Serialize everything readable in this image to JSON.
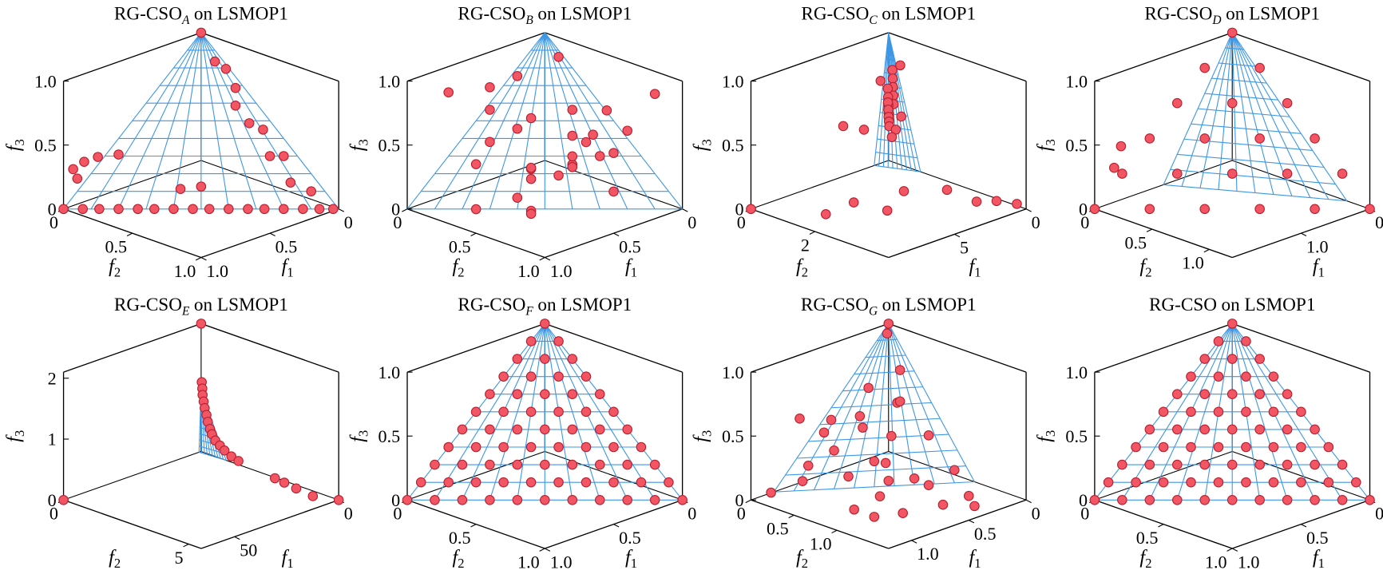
{
  "chart_data": [
    {
      "type": "scatter3d",
      "title": "RG-CSO",
      "title_sub": "A",
      "title_suffix": "on LSMOP1",
      "xlabel": "f",
      "xlabel_sub": "1",
      "ylabel": "f",
      "ylabel_sub": "2",
      "zlabel": "f",
      "zlabel_sub": "3",
      "xlim": [
        0,
        1
      ],
      "ylim": [
        0,
        1
      ],
      "zlim": [
        0,
        1
      ],
      "xticks": [
        0,
        0.5,
        {
          "value": 1,
          "label": "1.0"
        }
      ],
      "yticks": [
        0,
        0.5,
        {
          "value": 1,
          "label": "1.0"
        }
      ],
      "zticks": [
        0,
        0.5,
        {
          "value": 1,
          "label": "1.0"
        }
      ],
      "color": "#f25563",
      "edgecolor": "#b81f2d",
      "front_color": "#3d97e6",
      "x": [
        1,
        0.93,
        0.87,
        0.8,
        0.73,
        0.67,
        0.6,
        0.53,
        0.47,
        0.4,
        0.33,
        0.27,
        0.2,
        0.13,
        0.07,
        0.02,
        0.05,
        0.1,
        0.05,
        0.1,
        0.05,
        0.1,
        0.05,
        0.02,
        0.05,
        0.1,
        0.95,
        0.9,
        0.8,
        0.7,
        0.9,
        0.5,
        0.4,
        0
      ],
      "y": [
        0,
        0.07,
        0.13,
        0.2,
        0.27,
        0.33,
        0.4,
        0.47,
        0.53,
        0.6,
        0.67,
        0.73,
        0.8,
        0.87,
        0.93,
        0.98,
        0.3,
        0.35,
        0.5,
        0.6,
        0.65,
        0.75,
        0.85,
        0.2,
        0.15,
        0.45,
        0.02,
        0.05,
        0.05,
        0.1,
        0,
        0.35,
        0.4,
        0
      ],
      "z": [
        0,
        0,
        0,
        0,
        0,
        0,
        0,
        0,
        0,
        0,
        0,
        0,
        0,
        0,
        0,
        0,
        0.7,
        0.6,
        0.45,
        0.3,
        0.3,
        0.15,
        0.1,
        0.8,
        0.85,
        0.5,
        0.3,
        0.35,
        0.35,
        0.35,
        0.2,
        0.1,
        0.1,
        1
      ]
    },
    {
      "type": "scatter3d",
      "title": "RG-CSO",
      "title_sub": "B",
      "title_suffix": "on LSMOP1",
      "xlabel": "f",
      "xlabel_sub": "1",
      "ylabel": "f",
      "ylabel_sub": "2",
      "zlabel": "f",
      "zlabel_sub": "3",
      "xlim": [
        0,
        1
      ],
      "ylim": [
        0,
        1
      ],
      "zlim": [
        0,
        1
      ],
      "xticks": [
        0,
        0.5,
        {
          "value": 1,
          "label": "1.0"
        }
      ],
      "yticks": [
        0,
        0.5,
        {
          "value": 1,
          "label": "1.0"
        }
      ],
      "zticks": [
        0,
        0.5,
        {
          "value": 1,
          "label": "1.0"
        }
      ],
      "color": "#f25563",
      "edgecolor": "#b81f2d",
      "front_color": "#3d97e6",
      "x": [
        0.1,
        0.2,
        0.3,
        0.4,
        0.5,
        0.6,
        0.7,
        0.8,
        0.9,
        0.15,
        0.25,
        0.35,
        0.45,
        0.55,
        0.65,
        0.75,
        0.85,
        0.95,
        0.05,
        0.2,
        0.4,
        0.6,
        0.8,
        0.3,
        0.5,
        0.7,
        0.9,
        0.1,
        0.6,
        0.35
      ],
      "y": [
        0.9,
        0.7,
        0.5,
        0.3,
        0.1,
        0.8,
        0.6,
        0.4,
        0.2,
        0.55,
        0.85,
        0.15,
        0.65,
        0.35,
        0.95,
        0.25,
        0.75,
        0.45,
        0.5,
        0.3,
        0.9,
        0.2,
        0.7,
        0.1,
        0.6,
        0.9,
        0.8,
        0.3,
        0.5,
        0.7
      ],
      "z": [
        0.9,
        0.4,
        0.7,
        0.2,
        0.8,
        0.5,
        0.1,
        0.6,
        0.95,
        0.3,
        0.65,
        0.85,
        0.45,
        0.05,
        0.75,
        0.35,
        0.55,
        0.15,
        0.6,
        1,
        0.25,
        0.7,
        0.9,
        0.4,
        0.3,
        0.8,
        0.5,
        0.1,
        0,
        0.6
      ]
    },
    {
      "type": "scatter3d",
      "title": "RG-CSO",
      "title_sub": "C",
      "title_suffix": "on LSMOP1",
      "xlabel": "f",
      "xlabel_sub": "1",
      "ylabel": "f",
      "ylabel_sub": "2",
      "zlabel": "f",
      "zlabel_sub": "3",
      "xlim": [
        0,
        9.6
      ],
      "ylim": [
        0,
        4.3
      ],
      "zlim": [
        0,
        1
      ],
      "xticks": [
        0,
        5
      ],
      "yticks": [
        0,
        2
      ],
      "zticks": [
        0,
        0.5,
        {
          "value": 1,
          "label": "1.0"
        }
      ],
      "color": "#f25563",
      "edgecolor": "#b81f2d",
      "front_color": "#3d97e6",
      "x": [
        0.4,
        0.6,
        0.8,
        1,
        1.2,
        0.5,
        0.7,
        0.9,
        1.1,
        1.3,
        0.6,
        0.8,
        1,
        1.2,
        1.4,
        0.3,
        0.9,
        1.5,
        2,
        1,
        9.6,
        7.5,
        6,
        5,
        2.5,
        1.5,
        1,
        0.5,
        0.2,
        3.5,
        4.5
      ],
      "y": [
        0.3,
        0.4,
        0.5,
        0.6,
        0.7,
        0.2,
        0.3,
        0.4,
        0.5,
        0.6,
        0.25,
        0.35,
        0.45,
        0.55,
        0.65,
        0.5,
        0.8,
        0.9,
        1,
        0.2,
        0,
        1.4,
        1.6,
        2.2,
        1.6,
        2.5,
        3.2,
        3.6,
        4.1,
        0.8,
        0.6
      ],
      "z": [
        0.75,
        0.7,
        0.65,
        0.6,
        0.55,
        0.6,
        0.55,
        0.5,
        0.45,
        0.42,
        0.5,
        0.46,
        0.42,
        0.4,
        0.38,
        0.8,
        0.45,
        0.38,
        0.35,
        0.68,
        0,
        0,
        0.05,
        0,
        0,
        0.05,
        0,
        0.02,
        0.03,
        0.45,
        0.5
      ]
    },
    {
      "type": "scatter3d",
      "title": "RG-CSO",
      "title_sub": "D",
      "title_suffix": "on LSMOP1",
      "xlabel": "f",
      "xlabel_sub": "1",
      "ylabel": "f",
      "ylabel_sub": "2",
      "zlabel": "f",
      "zlabel_sub": "3",
      "xlim": [
        0,
        2
      ],
      "ylim": [
        0,
        1.2
      ],
      "zlim": [
        0,
        1
      ],
      "xticks": [
        0,
        {
          "value": 1,
          "label": "1.0"
        }
      ],
      "yticks": [
        0,
        0.5,
        {
          "value": 1,
          "label": "1.0"
        }
      ],
      "zticks": [
        0,
        0.5,
        {
          "value": 1,
          "label": "1.0"
        }
      ],
      "color": "#f25563",
      "edgecolor": "#b81f2d",
      "front_color": "#3d97e6",
      "x": [
        2,
        1.6,
        1.2,
        0.8,
        0.4,
        0,
        1.6,
        1.2,
        0.8,
        0.4,
        0,
        1.2,
        0.8,
        0.4,
        0,
        0.8,
        0.4,
        0,
        0.4,
        0,
        0,
        1.7,
        1.8
      ],
      "y": [
        0,
        0.24,
        0.48,
        0.72,
        0.96,
        1.2,
        0,
        0.24,
        0.48,
        0.72,
        0.96,
        0,
        0.24,
        0.48,
        0.72,
        0,
        0.24,
        0.48,
        0,
        0.24,
        0,
        0.05,
        0.05
      ],
      "z": [
        0,
        0,
        0,
        0,
        0,
        0,
        0.2,
        0.2,
        0.2,
        0.2,
        0.2,
        0.4,
        0.4,
        0.4,
        0.4,
        0.6,
        0.6,
        0.6,
        0.8,
        0.8,
        1,
        0.45,
        0.3
      ]
    },
    {
      "type": "scatter3d",
      "title": "RG-CSO",
      "title_sub": "E",
      "title_suffix": "on LSMOP1",
      "xlabel": "f",
      "xlabel_sub": "1",
      "ylabel": "f",
      "ylabel_sub": "2",
      "zlabel": "f",
      "zlabel_sub": "3",
      "xlim": [
        0,
        66
      ],
      "ylim": [
        0,
        5.5
      ],
      "zlim": [
        0,
        2.1
      ],
      "xticks": [
        0,
        50
      ],
      "yticks": [
        0,
        5
      ],
      "zticks": [
        0,
        1,
        2
      ],
      "color": "#f25563",
      "edgecolor": "#b81f2d",
      "front_color": "#3d97e6",
      "x": [
        0.3,
        0.4,
        0.5,
        0.6,
        0.7,
        0.8,
        1,
        1.2,
        1.4,
        1.6,
        1.8,
        2,
        2.3,
        2.5,
        3,
        3.3,
        3.6,
        4,
        0,
        66,
        0
      ],
      "y": [
        0.05,
        0.08,
        0.1,
        0.15,
        0.2,
        0.28,
        0.35,
        0.45,
        0.55,
        0.7,
        0.9,
        1.1,
        1.4,
        1.7,
        3.2,
        3.6,
        4.1,
        4.8,
        0,
        0,
        5.5
      ],
      "z": [
        1.15,
        1.05,
        0.95,
        0.85,
        0.75,
        0.65,
        0.55,
        0.45,
        0.38,
        0.3,
        0.25,
        0.2,
        0.15,
        0.12,
        0.06,
        0.05,
        0.03,
        0.01,
        2.1,
        0,
        0
      ]
    },
    {
      "type": "scatter3d",
      "title": "RG-CSO",
      "title_sub": "F",
      "title_suffix": "on LSMOP1",
      "xlabel": "f",
      "xlabel_sub": "1",
      "ylabel": "f",
      "ylabel_sub": "2",
      "zlabel": "f",
      "zlabel_sub": "3",
      "xlim": [
        0,
        1
      ],
      "ylim": [
        0,
        1
      ],
      "zlim": [
        0,
        1
      ],
      "xticks": [
        0,
        0.5,
        {
          "value": 1,
          "label": "1.0"
        }
      ],
      "yticks": [
        0,
        0.5,
        {
          "value": 1,
          "label": "1.0"
        }
      ],
      "zticks": [
        0,
        0.5,
        {
          "value": 1,
          "label": "1.0"
        }
      ],
      "color": "#f25563",
      "edgecolor": "#b81f2d",
      "front_color": "#3d97e6",
      "x": [
        1,
        0.9,
        0.8,
        0.7,
        0.6,
        0.5,
        0.4,
        0.3,
        0.2,
        0.1,
        0,
        0.9,
        0.8,
        0.7,
        0.6,
        0.5,
        0.4,
        0.3,
        0.2,
        0.1,
        0,
        0.8,
        0.7,
        0.6,
        0.5,
        0.4,
        0.3,
        0.2,
        0.1,
        0,
        0.7,
        0.6,
        0.5,
        0.4,
        0.3,
        0.2,
        0.1,
        0,
        0.6,
        0.5,
        0.4,
        0.3,
        0.2,
        0.1,
        0,
        0.5,
        0.4,
        0.3,
        0.2,
        0.1,
        0,
        0.4,
        0.3,
        0.2,
        0.1,
        0,
        0.3,
        0.2,
        0.1,
        0,
        0.2,
        0.1,
        0,
        0.1,
        0,
        0
      ],
      "y": [
        0,
        0.1,
        0.2,
        0.3,
        0.4,
        0.5,
        0.6,
        0.7,
        0.8,
        0.9,
        1,
        0,
        0.1,
        0.2,
        0.3,
        0.4,
        0.5,
        0.6,
        0.7,
        0.8,
        0.9,
        0,
        0.1,
        0.2,
        0.3,
        0.4,
        0.5,
        0.6,
        0.7,
        0.8,
        0,
        0.1,
        0.2,
        0.3,
        0.4,
        0.5,
        0.6,
        0.7,
        0,
        0.1,
        0.2,
        0.3,
        0.4,
        0.5,
        0.6,
        0,
        0.1,
        0.2,
        0.3,
        0.4,
        0.5,
        0,
        0.1,
        0.2,
        0.3,
        0.4,
        0,
        0.1,
        0.2,
        0.3,
        0,
        0.1,
        0.2,
        0,
        0.1,
        0
      ],
      "z": [
        0,
        0,
        0,
        0,
        0,
        0,
        0,
        0,
        0,
        0,
        0,
        0.1,
        0.1,
        0.1,
        0.1,
        0.1,
        0.1,
        0.1,
        0.1,
        0.1,
        0.1,
        0.2,
        0.2,
        0.2,
        0.2,
        0.2,
        0.2,
        0.2,
        0.2,
        0.2,
        0.3,
        0.3,
        0.3,
        0.3,
        0.3,
        0.3,
        0.3,
        0.3,
        0.4,
        0.4,
        0.4,
        0.4,
        0.4,
        0.4,
        0.4,
        0.5,
        0.5,
        0.5,
        0.5,
        0.5,
        0.5,
        0.6,
        0.6,
        0.6,
        0.6,
        0.6,
        0.7,
        0.7,
        0.7,
        0.7,
        0.8,
        0.8,
        0.8,
        0.9,
        0.9,
        1
      ]
    },
    {
      "type": "scatter3d",
      "title": "RG-CSO",
      "title_sub": "G",
      "title_suffix": "on LSMOP1",
      "xlabel": "f",
      "xlabel_sub": "1",
      "ylabel": "f",
      "ylabel_sub": "2",
      "zlabel": "f",
      "zlabel_sub": "3",
      "xlim": [
        0,
        1.2
      ],
      "ylim": [
        0,
        1.6
      ],
      "zlim": [
        0,
        1
      ],
      "xticks": [
        0,
        0.5,
        {
          "value": 1,
          "label": "1.0"
        }
      ],
      "yticks": [
        0,
        0.5,
        {
          "value": 1,
          "label": "1.0"
        }
      ],
      "zticks": [
        0,
        0.5,
        {
          "value": 1,
          "label": "1.0"
        }
      ],
      "color": "#f25563",
      "edgecolor": "#b81f2d",
      "front_color": "#3d97e6",
      "x": [
        0.1,
        0.3,
        0.5,
        0.7,
        0.9,
        1.1,
        0.2,
        0.4,
        0.6,
        0.8,
        1,
        0.15,
        0.35,
        0.55,
        0.75,
        0.95,
        0.05,
        0.25,
        0.45,
        0.65,
        0.85,
        0.3,
        0.5,
        0.7,
        0.1,
        0.2,
        0.05,
        0.6,
        0.9,
        0.4,
        0
      ],
      "y": [
        0.9,
        0.7,
        0.5,
        0.3,
        0.2,
        0.1,
        1.2,
        1,
        0.8,
        0.6,
        0.4,
        0.3,
        0.5,
        0.7,
        0.9,
        1.1,
        0.2,
        0.1,
        0.3,
        0.2,
        0.1,
        1.4,
        1.3,
        1.1,
        0.6,
        0.4,
        0.05,
        0.05,
        0.8,
        0.2,
        0
      ],
      "z": [
        0.1,
        0.05,
        0.2,
        0.3,
        0.1,
        0.05,
        0,
        0.1,
        0.15,
        0.2,
        0.3,
        0.5,
        0.35,
        0.25,
        0.1,
        0.05,
        0.7,
        0.6,
        0.4,
        0.5,
        0.55,
        0,
        0.05,
        0,
        0.3,
        0.55,
        0.95,
        0.35,
        0.02,
        0.45,
        1
      ]
    },
    {
      "type": "scatter3d",
      "title": "RG-CSO",
      "title_suffix": "on LSMOP1",
      "xlabel": "f",
      "xlabel_sub": "1",
      "ylabel": "f",
      "ylabel_sub": "2",
      "zlabel": "f",
      "zlabel_sub": "3",
      "xlim": [
        0,
        1
      ],
      "ylim": [
        0,
        1
      ],
      "zlim": [
        0,
        1
      ],
      "xticks": [
        0,
        0.5,
        {
          "value": 1,
          "label": "1.0"
        }
      ],
      "yticks": [
        0,
        0.5,
        {
          "value": 1,
          "label": "1.0"
        }
      ],
      "zticks": [
        0,
        0.5,
        {
          "value": 1,
          "label": "1.0"
        }
      ],
      "color": "#f25563",
      "edgecolor": "#b81f2d",
      "front_color": "#3d97e6",
      "x": [
        1,
        0.9,
        0.8,
        0.7,
        0.6,
        0.5,
        0.4,
        0.3,
        0.2,
        0.1,
        0,
        0.9,
        0.8,
        0.7,
        0.6,
        0.5,
        0.4,
        0.3,
        0.2,
        0.1,
        0,
        0.8,
        0.7,
        0.6,
        0.5,
        0.4,
        0.3,
        0.2,
        0.1,
        0,
        0.7,
        0.6,
        0.5,
        0.4,
        0.3,
        0.2,
        0.1,
        0,
        0.6,
        0.5,
        0.4,
        0.3,
        0.2,
        0.1,
        0,
        0.5,
        0.4,
        0.3,
        0.2,
        0.1,
        0,
        0.4,
        0.3,
        0.2,
        0.1,
        0,
        0.3,
        0.2,
        0.1,
        0,
        0.2,
        0.1,
        0,
        0.1,
        0,
        0
      ],
      "y": [
        0,
        0.1,
        0.2,
        0.3,
        0.4,
        0.5,
        0.6,
        0.7,
        0.8,
        0.9,
        1,
        0,
        0.1,
        0.2,
        0.3,
        0.4,
        0.5,
        0.6,
        0.7,
        0.8,
        0.9,
        0,
        0.1,
        0.2,
        0.3,
        0.4,
        0.5,
        0.6,
        0.7,
        0.8,
        0,
        0.1,
        0.2,
        0.3,
        0.4,
        0.5,
        0.6,
        0.7,
        0,
        0.1,
        0.2,
        0.3,
        0.4,
        0.5,
        0.6,
        0,
        0.1,
        0.2,
        0.3,
        0.4,
        0.5,
        0,
        0.1,
        0.2,
        0.3,
        0.4,
        0,
        0.1,
        0.2,
        0.3,
        0,
        0.1,
        0.2,
        0,
        0.1,
        0
      ],
      "z": [
        0,
        0,
        0,
        0,
        0,
        0,
        0,
        0,
        0,
        0,
        0,
        0.1,
        0.1,
        0.1,
        0.1,
        0.1,
        0.1,
        0.1,
        0.1,
        0.1,
        0.1,
        0.2,
        0.2,
        0.2,
        0.2,
        0.2,
        0.2,
        0.2,
        0.2,
        0.2,
        0.3,
        0.3,
        0.3,
        0.3,
        0.3,
        0.3,
        0.3,
        0.3,
        0.4,
        0.4,
        0.4,
        0.4,
        0.4,
        0.4,
        0.4,
        0.5,
        0.5,
        0.5,
        0.5,
        0.5,
        0.5,
        0.6,
        0.6,
        0.6,
        0.6,
        0.6,
        0.7,
        0.7,
        0.7,
        0.7,
        0.8,
        0.8,
        0.8,
        0.9,
        0.9,
        1
      ]
    }
  ]
}
